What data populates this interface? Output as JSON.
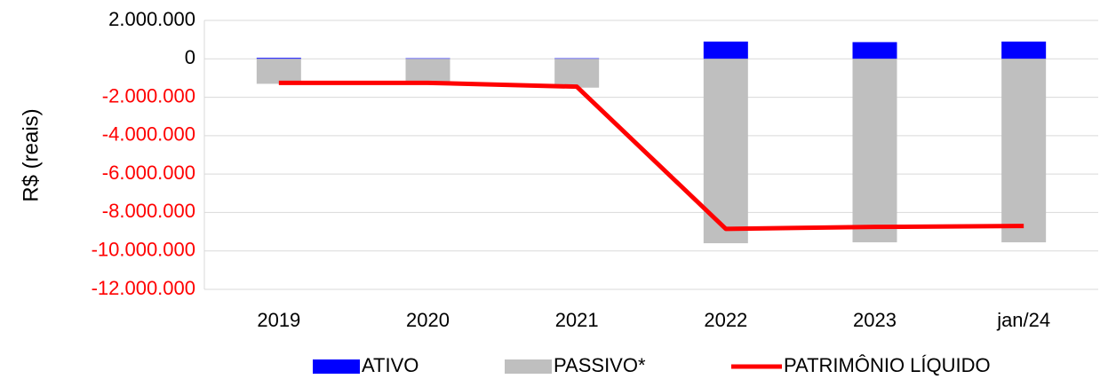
{
  "chart_data": {
    "type": "bar_line",
    "y_axis_label": "R$ (reais)",
    "categories": [
      "2019",
      "2020",
      "2021",
      "2022",
      "2023",
      "jan/24"
    ],
    "series": [
      {
        "name": "ATIVO",
        "type": "bar",
        "color": "#0000ff",
        "values": [
          50000,
          30000,
          30000,
          900000,
          870000,
          900000
        ]
      },
      {
        "name": "PASSIVO*",
        "type": "bar",
        "color": "#bfbfbf",
        "values": [
          -1300000,
          -1300000,
          -1500000,
          -9600000,
          -9550000,
          -9550000
        ]
      },
      {
        "name": "PATRIMÔNIO LÍQUIDO",
        "type": "line",
        "color": "#ff0000",
        "values": [
          -1250000,
          -1250000,
          -1450000,
          -8850000,
          -8750000,
          -8700000
        ]
      }
    ],
    "ylim": [
      -12000000,
      2000000
    ],
    "yticks": [
      {
        "value": -12000000,
        "label": "-12.000.000"
      },
      {
        "value": -10000000,
        "label": "-10.000.000"
      },
      {
        "value": -8000000,
        "label": "-8.000.000"
      },
      {
        "value": -6000000,
        "label": "-6.000.000"
      },
      {
        "value": -4000000,
        "label": "-4.000.000"
      },
      {
        "value": -2000000,
        "label": "-2.000.000"
      },
      0,
      {
        "value": 2000000,
        "label": "2.000.000"
      }
    ],
    "negative_tick_color": "#ff0000",
    "grid": true,
    "legend": "bottom"
  }
}
